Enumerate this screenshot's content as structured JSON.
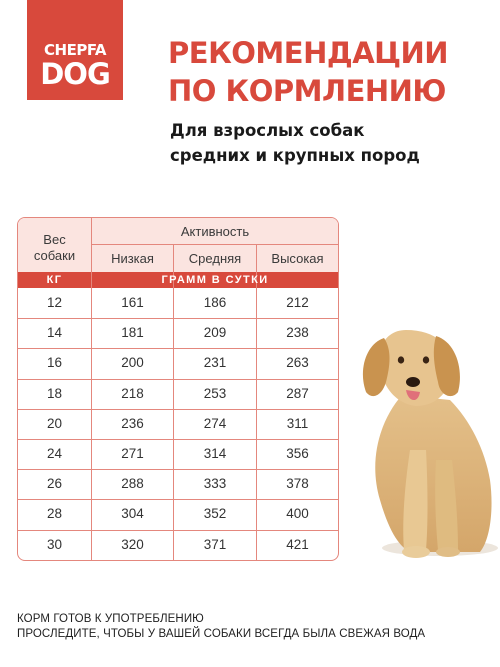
{
  "brand": {
    "line1": "CHEPFA",
    "line2": "DOG"
  },
  "title": {
    "line1": "РЕКОМЕНДАЦИИ",
    "line2": "ПО КОРМЛЕНИЮ"
  },
  "subtitle": {
    "line1": "Для взрослых собак",
    "line2": "средних и крупных пород"
  },
  "table": {
    "weight_header": {
      "line1": "Вес",
      "line2": "собаки"
    },
    "activity_header": "Активность",
    "levels": [
      "Низкая",
      "Средняя",
      "Высокая"
    ],
    "unit_left": "КГ",
    "unit_right": "ГРАММ В СУТКИ",
    "rows": [
      [
        "12",
        "161",
        "186",
        "212"
      ],
      [
        "14",
        "181",
        "209",
        "238"
      ],
      [
        "16",
        "200",
        "231",
        "263"
      ],
      [
        "18",
        "218",
        "253",
        "287"
      ],
      [
        "20",
        "236",
        "274",
        "311"
      ],
      [
        "24",
        "271",
        "314",
        "356"
      ],
      [
        "26",
        "288",
        "333",
        "378"
      ],
      [
        "28",
        "304",
        "352",
        "400"
      ],
      [
        "30",
        "320",
        "371",
        "421"
      ]
    ]
  },
  "footer": {
    "line1": "КОРМ ГОТОВ К УПОТРЕБЛЕНИЮ",
    "line2": "ПРОСЛЕДИТЕ, ЧТОБЫ У ВАШЕЙ СОБАКИ ВСЕГДА БЫЛА СВЕЖАЯ ВОДА"
  },
  "colors": {
    "accent": "#d8493c",
    "header_fill": "#fbe4e0",
    "grid": "#e4877d"
  }
}
